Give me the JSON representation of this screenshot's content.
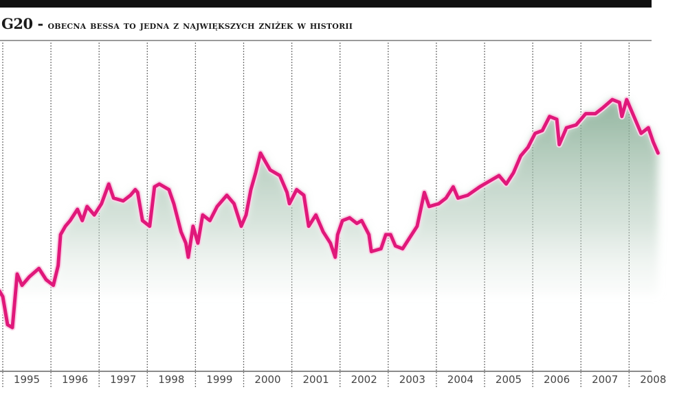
{
  "header": {
    "title_lead": "G20 - ",
    "title_rest": "obecna bessa to jedna z największych zniżek w historii"
  },
  "colors": {
    "top_bar": "#111111",
    "line": "#e0187a",
    "line_glow": "#f7c6de",
    "fill_top": "#7fa88e",
    "fill_bottom": "#ffffff",
    "grid": "#707070",
    "axis_text": "#444444"
  },
  "chart_data": {
    "type": "line",
    "title": "G20 - obecna bessa to jedna z największych zniżek w historii",
    "xlabel": "",
    "ylabel": "",
    "x_tick_labels": [
      "1995",
      "1996",
      "1997",
      "1998",
      "1999",
      "2000",
      "2001",
      "2002",
      "2003",
      "2004",
      "2005",
      "2006",
      "2007",
      "2008"
    ],
    "grid": {
      "vertical": true,
      "style": "dotted",
      "horizontal": false
    },
    "legend": null,
    "y_axis_labels_visible": false,
    "note": "Relative index values (0-100 scale estimated from pixel positions; no y-axis labels shown)",
    "series": [
      {
        "name": "G20",
        "points": [
          [
            1994.93,
            21
          ],
          [
            1995.0,
            19
          ],
          [
            1995.1,
            9
          ],
          [
            1995.2,
            8
          ],
          [
            1995.3,
            27
          ],
          [
            1995.4,
            23
          ],
          [
            1995.55,
            26
          ],
          [
            1995.75,
            29
          ],
          [
            1995.9,
            25
          ],
          [
            1996.05,
            23
          ],
          [
            1996.15,
            30
          ],
          [
            1996.2,
            41
          ],
          [
            1996.3,
            44
          ],
          [
            1996.4,
            46
          ],
          [
            1996.55,
            50
          ],
          [
            1996.65,
            46
          ],
          [
            1996.75,
            51
          ],
          [
            1996.9,
            48
          ],
          [
            1997.05,
            52
          ],
          [
            1997.2,
            59
          ],
          [
            1997.3,
            54
          ],
          [
            1997.5,
            53
          ],
          [
            1997.65,
            55
          ],
          [
            1997.75,
            57
          ],
          [
            1997.8,
            56
          ],
          [
            1997.9,
            46
          ],
          [
            1998.05,
            44
          ],
          [
            1998.15,
            58
          ],
          [
            1998.25,
            59
          ],
          [
            1998.45,
            57
          ],
          [
            1998.55,
            52
          ],
          [
            1998.7,
            42
          ],
          [
            1998.8,
            38
          ],
          [
            1998.85,
            33
          ],
          [
            1998.95,
            44
          ],
          [
            1999.05,
            38
          ],
          [
            1999.15,
            48
          ],
          [
            1999.3,
            46
          ],
          [
            1999.45,
            51
          ],
          [
            1999.65,
            55
          ],
          [
            1999.8,
            52
          ],
          [
            1999.95,
            44
          ],
          [
            2000.05,
            48
          ],
          [
            2000.15,
            57
          ],
          [
            2000.25,
            63
          ],
          [
            2000.35,
            70
          ],
          [
            2000.45,
            67
          ],
          [
            2000.55,
            64
          ],
          [
            2000.75,
            62
          ],
          [
            2000.9,
            56
          ],
          [
            2000.95,
            52
          ],
          [
            2001.1,
            57
          ],
          [
            2001.25,
            55
          ],
          [
            2001.35,
            44
          ],
          [
            2001.5,
            48
          ],
          [
            2001.6,
            44
          ],
          [
            2001.65,
            42
          ],
          [
            2001.8,
            38
          ],
          [
            2001.9,
            33
          ],
          [
            2001.95,
            41
          ],
          [
            2002.05,
            46
          ],
          [
            2002.2,
            47
          ],
          [
            2002.35,
            45
          ],
          [
            2002.45,
            46
          ],
          [
            2002.6,
            41
          ],
          [
            2002.65,
            35
          ],
          [
            2002.85,
            36
          ],
          [
            2002.95,
            41
          ],
          [
            2003.05,
            41
          ],
          [
            2003.15,
            37
          ],
          [
            2003.3,
            36
          ],
          [
            2003.45,
            40
          ],
          [
            2003.6,
            44
          ],
          [
            2003.65,
            48
          ],
          [
            2003.75,
            56
          ],
          [
            2003.85,
            51
          ],
          [
            2004.05,
            52
          ],
          [
            2004.2,
            54
          ],
          [
            2004.35,
            58
          ],
          [
            2004.45,
            54
          ],
          [
            2004.65,
            55
          ],
          [
            2004.9,
            58
          ],
          [
            2005.1,
            60
          ],
          [
            2005.3,
            62
          ],
          [
            2005.45,
            59
          ],
          [
            2005.6,
            63
          ],
          [
            2005.75,
            69
          ],
          [
            2005.9,
            72
          ],
          [
            2006.05,
            77
          ],
          [
            2006.2,
            78
          ],
          [
            2006.35,
            83
          ],
          [
            2006.5,
            82
          ],
          [
            2006.55,
            73
          ],
          [
            2006.7,
            79
          ],
          [
            2006.9,
            80
          ],
          [
            2007.1,
            84
          ],
          [
            2007.3,
            84
          ],
          [
            2007.45,
            86
          ],
          [
            2007.65,
            89
          ],
          [
            2007.8,
            88
          ],
          [
            2007.85,
            83
          ],
          [
            2007.95,
            89
          ],
          [
            2008.1,
            83
          ],
          [
            2008.25,
            77
          ],
          [
            2008.4,
            79
          ],
          [
            2008.5,
            74
          ],
          [
            2008.6,
            70
          ]
        ]
      }
    ]
  }
}
